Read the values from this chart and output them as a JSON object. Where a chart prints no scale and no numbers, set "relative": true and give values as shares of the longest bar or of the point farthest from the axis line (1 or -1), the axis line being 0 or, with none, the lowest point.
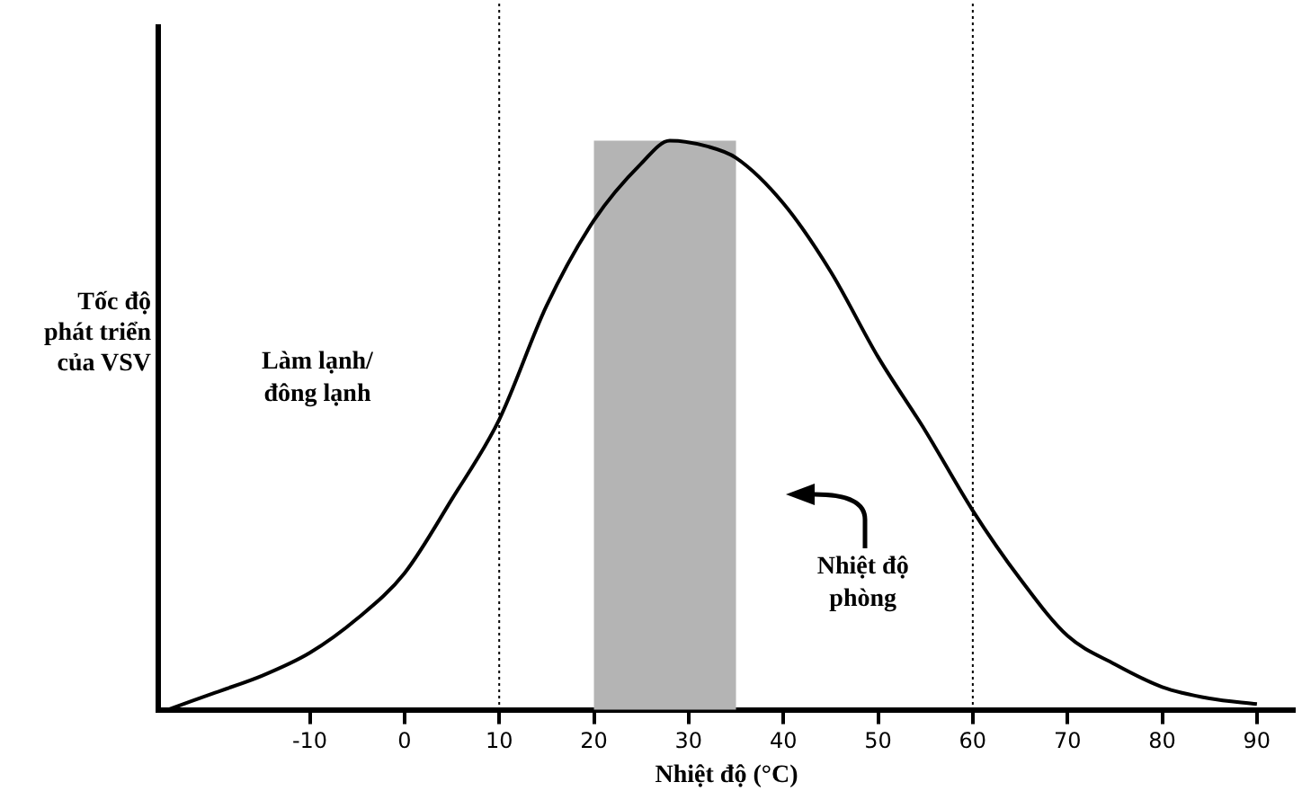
{
  "chart_data": {
    "type": "line",
    "relative": true,
    "xlabel": "Nhiệt độ (°C)",
    "ylabel": "Tốc độ phát triển của VSV",
    "x": [
      -25,
      -20,
      -15,
      -10,
      -5,
      0,
      5,
      10,
      15,
      20,
      25,
      28,
      32,
      35,
      40,
      45,
      50,
      55,
      60,
      65,
      70,
      75,
      80,
      85,
      90
    ],
    "series": [
      {
        "color": "#000000",
        "values": [
          0,
          0.03,
          0.06,
          0.1,
          0.16,
          0.24,
          0.37,
          0.51,
          0.71,
          0.86,
          0.96,
          1,
          0.99,
          0.97,
          0.89,
          0.77,
          0.62,
          0.49,
          0.35,
          0.23,
          0.13,
          0.08,
          0.04,
          0.02,
          0.01
        ]
      }
    ],
    "xlim": [
      -26,
      94
    ],
    "xticks": [
      {
        "value": -10,
        "label": "-10"
      },
      0,
      10,
      20,
      30,
      40,
      50,
      60,
      70,
      80,
      90
    ],
    "ref_lines": [
      {
        "axis": "x",
        "value": 10,
        "color": "#000000",
        "line_style": "dotted"
      },
      {
        "axis": "x",
        "value": 60,
        "color": "#000000",
        "line_style": "dotted"
      }
    ],
    "bands": [
      {
        "axis": "x",
        "from": 20,
        "to": 35,
        "color": "#b4b4b4"
      }
    ],
    "annotations": [
      "Làm lạnh/ đông lạnh",
      "Nhiệt độ phòng"
    ],
    "grid": false,
    "legend": false,
    "marker": "none",
    "line_style": "solid"
  }
}
